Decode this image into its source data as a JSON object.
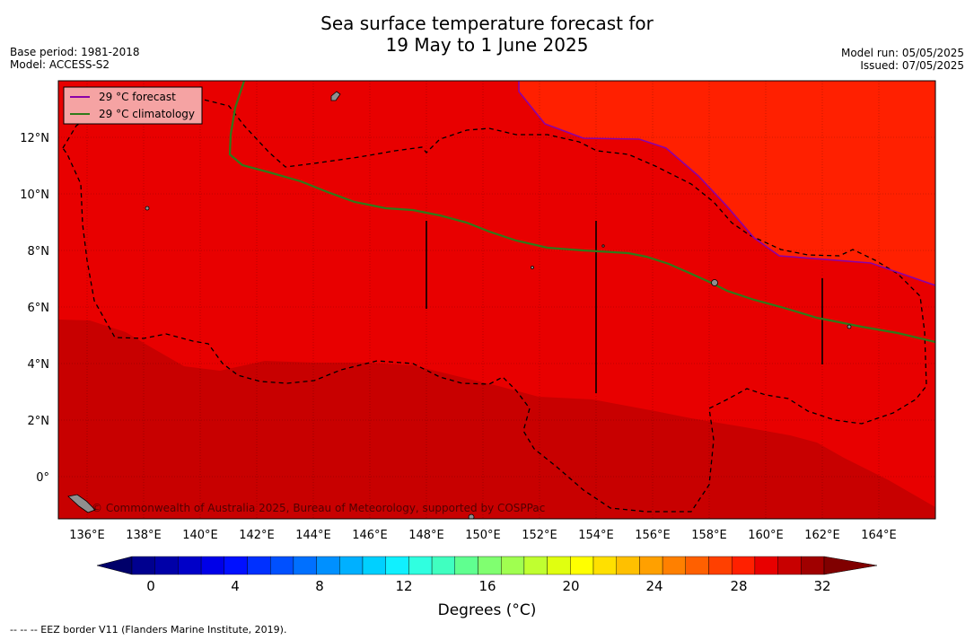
{
  "title_line1": "Sea surface temperature forecast for",
  "title_line2": "19 May to 1 June 2025",
  "base_period": "Base period: 1981-2018",
  "model": "Model: ACCESS-S2",
  "model_run": "Model run: 05/05/2025",
  "issued": "Issued: 07/05/2025",
  "legend": {
    "forecast_label": "29 °C  forecast",
    "climatology_label": "29 °C  climatology",
    "forecast_color": "#8b00a8",
    "climatology_color": "#2f7a1a"
  },
  "copyright": "© Commonwealth of Australia 2025, Bureau of Meteorology, supported by COSPPac",
  "colorbar": {
    "title": "Degrees (°C)",
    "tick_labels": [
      "0",
      "4",
      "8",
      "12",
      "16",
      "20",
      "24",
      "28",
      "32"
    ],
    "colors": [
      "#00008f",
      "#0000a8",
      "#0000c8",
      "#0000e8",
      "#0010ff",
      "#0030ff",
      "#0050ff",
      "#0070ff",
      "#0090ff",
      "#00b0ff",
      "#00d0ff",
      "#10f0ff",
      "#30ffe0",
      "#40ffc0",
      "#60ff90",
      "#80ff70",
      "#a0ff50",
      "#c0ff30",
      "#e0ff10",
      "#ffff00",
      "#ffe000",
      "#ffc000",
      "#ffa000",
      "#ff8000",
      "#ff6000",
      "#ff4000",
      "#ff2000",
      "#e80000",
      "#c80000",
      "#a00000"
    ],
    "under_color": "#00006a",
    "over_color": "#800000"
  },
  "map": {
    "lon_labels": [
      "136°E",
      "138°E",
      "140°E",
      "142°E",
      "144°E",
      "146°E",
      "148°E",
      "150°E",
      "152°E",
      "154°E",
      "156°E",
      "158°E",
      "160°E",
      "162°E",
      "164°E"
    ],
    "lat_labels": [
      "12°N",
      "10°N",
      "8°N",
      "6°N",
      "4°N",
      "2°N",
      "0°"
    ],
    "fill_colors": {
      "band_29_30": "#ff2000",
      "band_30_31": "#e80000",
      "band_31_32": "#c80000"
    }
  },
  "footer": "--  --  -- EEZ border V11 (Flanders Marine Institute, 2019)."
}
